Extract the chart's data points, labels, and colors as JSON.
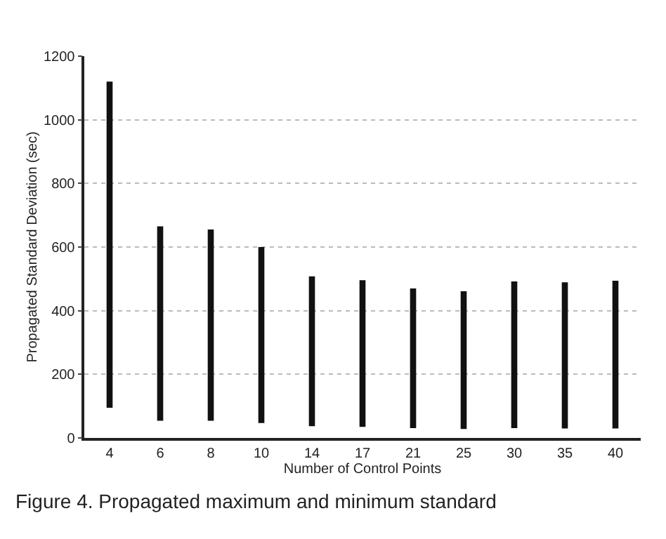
{
  "chart_data": {
    "type": "bar",
    "xlabel": "Number of Control Points",
    "ylabel": "Propagated Standard Deviation (sec)",
    "categories": [
      "4",
      "6",
      "8",
      "10",
      "14",
      "17",
      "21",
      "25",
      "30",
      "35",
      "40"
    ],
    "base": [
      95,
      54,
      54,
      47,
      37,
      35,
      31,
      28,
      31,
      30,
      30
    ],
    "values": [
      1025,
      611,
      601,
      553,
      471,
      461,
      439,
      433,
      461,
      459,
      464
    ],
    "color": "#111111",
    "ylim": [
      0,
      1200
    ],
    "yticks": [
      0,
      200,
      400,
      600,
      800,
      1000,
      1200
    ],
    "grid": "y",
    "annotations": [
      "Figure 4. Propagated maximum and minimum standard"
    ]
  }
}
